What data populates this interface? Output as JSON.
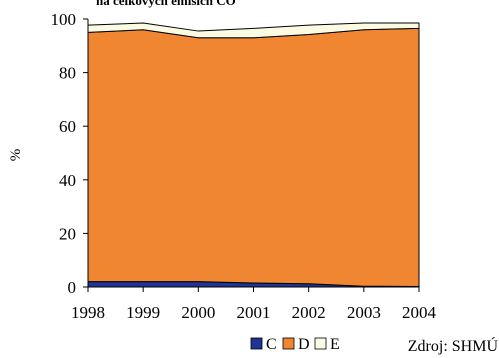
{
  "chart_data": {
    "type": "area",
    "stacked": true,
    "title": "na celkových emisích CO",
    "ylabel": "%",
    "xlabel": "",
    "categories": [
      "1998",
      "1999",
      "2000",
      "2001",
      "2002",
      "2003",
      "2004"
    ],
    "ylim": [
      0,
      100
    ],
    "yticks": [
      "0",
      "20",
      "40",
      "60",
      "80",
      "100"
    ],
    "series": [
      {
        "name": "C",
        "color": "#1f3494",
        "values": [
          2.0,
          2.0,
          2.0,
          1.5,
          1.2,
          0.3,
          0.2
        ]
      },
      {
        "name": "D",
        "color": "#f08632",
        "values": [
          93.0,
          94.0,
          91.0,
          91.5,
          93.0,
          95.7,
          96.3
        ]
      },
      {
        "name": "E",
        "color": "#fbfbe3",
        "values": [
          2.7,
          2.5,
          2.5,
          3.5,
          3.5,
          2.5,
          2.0
        ]
      }
    ],
    "legend_position": "bottom",
    "grid": false
  },
  "source": "Zdroj: SHMÚ"
}
